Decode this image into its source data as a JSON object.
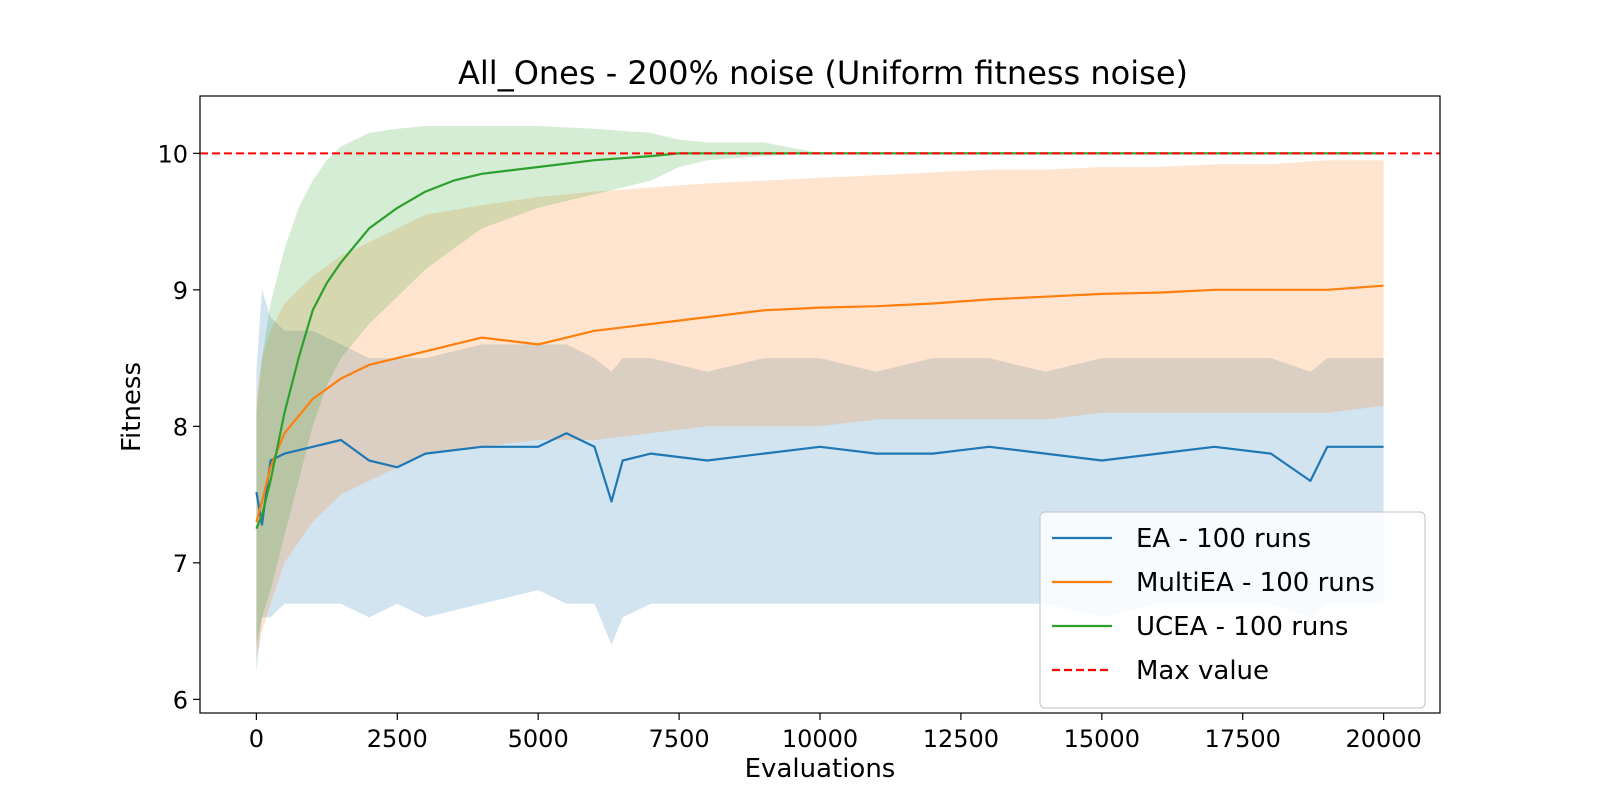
{
  "chart_data": {
    "type": "line",
    "title": "All_Ones - 200% noise (Uniform fitness noise)",
    "xlabel": "Evaluations",
    "ylabel": "Fitness",
    "xlim": [
      -1000,
      21000
    ],
    "ylim": [
      5.9,
      10.42
    ],
    "xticks": [
      0,
      2500,
      5000,
      7500,
      10000,
      12500,
      15000,
      17500,
      20000
    ],
    "yticks": [
      6,
      7,
      8,
      9,
      10
    ],
    "grid": false,
    "legend": "bottom-right",
    "max_value": 10,
    "series": [
      {
        "name": "EA - 100 runs",
        "color": "#1f77b4",
        "x": [
          0,
          100,
          250,
          500,
          1000,
          1500,
          2000,
          2500,
          3000,
          4000,
          5000,
          5500,
          6000,
          6300,
          6500,
          7000,
          8000,
          9000,
          10000,
          11000,
          12000,
          13000,
          14000,
          15000,
          16000,
          17000,
          18000,
          18700,
          19000,
          20000
        ],
        "mean": [
          7.52,
          7.28,
          7.75,
          7.8,
          7.85,
          7.9,
          7.75,
          7.7,
          7.8,
          7.85,
          7.85,
          7.95,
          7.85,
          7.45,
          7.75,
          7.8,
          7.75,
          7.8,
          7.85,
          7.8,
          7.8,
          7.85,
          7.8,
          7.75,
          7.8,
          7.85,
          7.8,
          7.6,
          7.85,
          7.85
        ],
        "lower": [
          6.2,
          6.6,
          6.6,
          6.7,
          6.7,
          6.7,
          6.6,
          6.7,
          6.6,
          6.7,
          6.8,
          6.7,
          6.7,
          6.4,
          6.6,
          6.7,
          6.7,
          6.7,
          6.7,
          6.7,
          6.7,
          6.7,
          6.7,
          6.6,
          6.7,
          6.7,
          6.7,
          6.6,
          6.7,
          6.7
        ],
        "upper": [
          8.4,
          9.0,
          8.8,
          8.7,
          8.7,
          8.6,
          8.5,
          8.5,
          8.5,
          8.6,
          8.6,
          8.6,
          8.5,
          8.4,
          8.5,
          8.5,
          8.4,
          8.5,
          8.5,
          8.4,
          8.5,
          8.5,
          8.4,
          8.5,
          8.5,
          8.5,
          8.5,
          8.4,
          8.5,
          8.5
        ]
      },
      {
        "name": "MultiEA - 100 runs",
        "color": "#ff7f0e",
        "x": [
          0,
          100,
          250,
          500,
          1000,
          1500,
          2000,
          2500,
          3000,
          4000,
          5000,
          6000,
          7000,
          8000,
          9000,
          10000,
          11000,
          12000,
          13000,
          14000,
          15000,
          16000,
          17000,
          18000,
          19000,
          20000
        ],
        "mean": [
          7.3,
          7.45,
          7.7,
          7.95,
          8.2,
          8.35,
          8.45,
          8.5,
          8.55,
          8.65,
          8.6,
          8.7,
          8.75,
          8.8,
          8.85,
          8.87,
          8.88,
          8.9,
          8.93,
          8.95,
          8.97,
          8.98,
          9.0,
          9.0,
          9.0,
          9.03
        ],
        "lower": [
          6.3,
          6.5,
          6.7,
          7.0,
          7.3,
          7.5,
          7.6,
          7.7,
          7.8,
          7.85,
          7.9,
          7.9,
          7.95,
          8.0,
          8.0,
          8.0,
          8.05,
          8.05,
          8.05,
          8.05,
          8.1,
          8.1,
          8.1,
          8.1,
          8.1,
          8.15
        ],
        "upper": [
          8.2,
          8.5,
          8.7,
          8.9,
          9.1,
          9.25,
          9.35,
          9.45,
          9.55,
          9.62,
          9.68,
          9.72,
          9.75,
          9.78,
          9.8,
          9.82,
          9.84,
          9.86,
          9.88,
          9.88,
          9.9,
          9.9,
          9.92,
          9.92,
          9.95,
          9.95
        ]
      },
      {
        "name": "UCEA - 100 runs",
        "color": "#2ca02c",
        "x": [
          0,
          100,
          250,
          500,
          750,
          1000,
          1250,
          1500,
          2000,
          2500,
          3000,
          3500,
          4000,
          5000,
          6000,
          7000,
          7500,
          8000,
          9000,
          10000,
          12000,
          15000,
          20000
        ],
        "mean": [
          7.25,
          7.35,
          7.6,
          8.1,
          8.5,
          8.85,
          9.05,
          9.2,
          9.45,
          9.6,
          9.72,
          9.8,
          9.85,
          9.9,
          9.95,
          9.98,
          10.0,
          10.0,
          10.0,
          10.0,
          10.0,
          10.0,
          10.0
        ],
        "lower": [
          6.4,
          6.6,
          6.8,
          7.2,
          7.6,
          8.0,
          8.3,
          8.5,
          8.75,
          8.95,
          9.15,
          9.3,
          9.45,
          9.6,
          9.7,
          9.8,
          9.9,
          9.95,
          9.98,
          10.0,
          10.0,
          10.0,
          10.0
        ],
        "upper": [
          8.1,
          8.5,
          8.9,
          9.3,
          9.6,
          9.8,
          9.95,
          10.05,
          10.15,
          10.18,
          10.2,
          10.2,
          10.2,
          10.2,
          10.18,
          10.15,
          10.1,
          10.08,
          10.08,
          10.0,
          10.0,
          10.0,
          10.0
        ]
      }
    ],
    "reference_line": {
      "name": "Max value",
      "color": "#ff0000",
      "y": 10
    }
  }
}
